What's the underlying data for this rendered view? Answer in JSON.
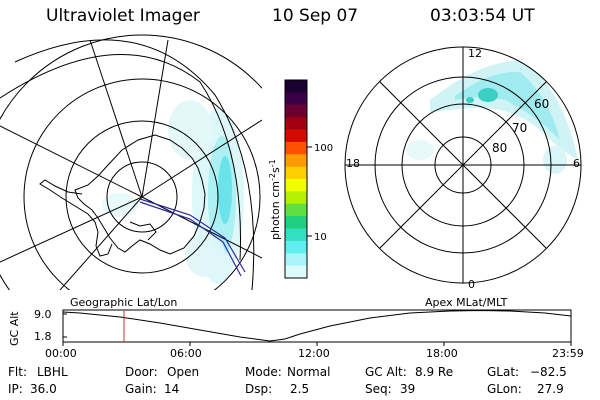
{
  "header": {
    "instrument": "Ultraviolet Imager",
    "date": "10 Sep 07",
    "time": "03:03:54 UT"
  },
  "colorbar": {
    "label": "photon cm",
    "label_sup1": "-2",
    "label_s": "s",
    "label_sup2": "-1",
    "ticks": [
      "100",
      "10"
    ],
    "colors_top_to_bottom": [
      "#1a0033",
      "#3a0047",
      "#6a0030",
      "#a00010",
      "#d40a00",
      "#ff5000",
      "#ff9a00",
      "#ffd000",
      "#f2ff00",
      "#b4f000",
      "#60e040",
      "#20d080",
      "#30e0c0",
      "#60eef0",
      "#a8f4f6",
      "#dcfafa"
    ]
  },
  "left_map": {
    "projection_label": "Geographic Lat/Lon"
  },
  "right_map": {
    "projection_label": "Apex  MLat/MLT",
    "mlt_labels": {
      "top": "12",
      "bottom": "0",
      "left": "18",
      "right": "6"
    },
    "lat_labels": [
      "60",
      "70",
      "80"
    ]
  },
  "altitude_plot": {
    "y_label": "GC Alt",
    "y_ticks": [
      "9.0",
      "1.8"
    ],
    "x_ticks": [
      "00:00",
      "06:00",
      "12:00",
      "18:00",
      "23:59"
    ],
    "current_marker_color": "#c83232"
  },
  "info": {
    "flt_label": "Flt:",
    "flt_value": "LBHL",
    "ip_label": "IP:",
    "ip_value": "36.0",
    "door_label": "Door:",
    "door_value": "Open",
    "gain_label": "Gain:",
    "gain_value": "14",
    "mode_label": "Mode:",
    "mode_value": "Normal",
    "dsp_label": "Dsp:",
    "dsp_value": "2.5",
    "gcalt_label": "GC Alt:",
    "gcalt_value": "8.9 Re",
    "seq_label": "Seq:",
    "seq_value": "39",
    "glat_label": "GLat:",
    "glat_value": "−82.5",
    "glon_label": "GLon:",
    "glon_value": "27.9"
  }
}
